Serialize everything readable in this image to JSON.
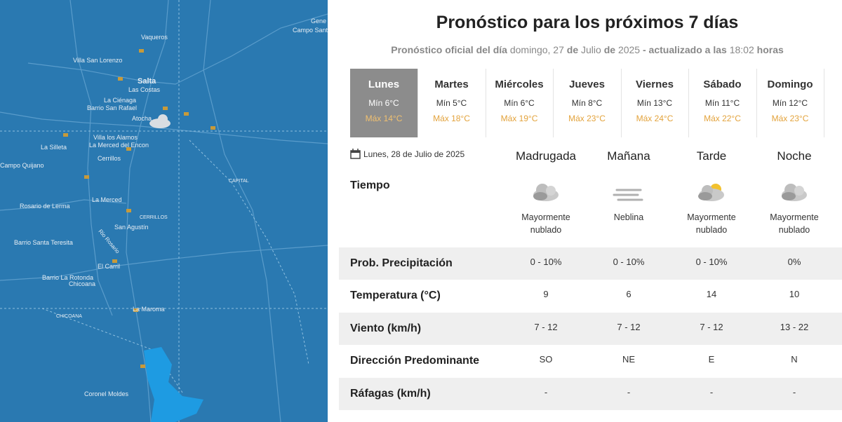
{
  "map": {
    "labels": [
      "Gene",
      "Campo Santo",
      "Vaqueros",
      "Villa San Lorenzo",
      "Salta",
      "Las Costas",
      "La Ciénaga",
      "Barrio San Rafael",
      "Atocha",
      "Villa los Alamos",
      "La Merced del Encon",
      "La Silleta",
      "Cerrillos",
      "Campo Quijano",
      "CAPITAL",
      "Rosario de Lerma",
      "La Merced",
      "CERRILLOS",
      "San Agustín",
      "Barrio Santa Teresita",
      "Rio Rosario",
      "El Carril",
      "Barrio La Rotonda",
      "Chicoana",
      "CHICOANA",
      "La Maroma",
      "Coronel Moldes"
    ]
  },
  "forecast": {
    "title": "Pronóstico para los próximos 7 días",
    "subtitle": [
      "Pronóstico oficial del día",
      "domingo, 27",
      "de",
      "Julio",
      "de",
      "2025",
      "- actualizado a las",
      "18:02",
      "horas"
    ],
    "days": [
      {
        "name": "Lunes",
        "min": "Mín 6°C",
        "max": "Máx 14°C"
      },
      {
        "name": "Martes",
        "min": "Mín 5°C",
        "max": "Máx 18°C"
      },
      {
        "name": "Miércoles",
        "min": "Mín 6°C",
        "max": "Máx 19°C"
      },
      {
        "name": "Jueves",
        "min": "Mín 8°C",
        "max": "Máx 23°C"
      },
      {
        "name": "Viernes",
        "min": "Mín 13°C",
        "max": "Máx 24°C"
      },
      {
        "name": "Sábado",
        "min": "Mín 11°C",
        "max": "Máx 22°C"
      },
      {
        "name": "Domingo",
        "min": "Mín 12°C",
        "max": "Máx 23°C"
      }
    ],
    "date": "Lunes, 28 de Julio de 2025",
    "periods": [
      "Madrugada",
      "Mañana",
      "Tarde",
      "Noche"
    ],
    "weather_label": "Tiempo",
    "weather": [
      "Mayormente nublado",
      "Neblina",
      "Mayormente nublado",
      "Mayormente nublado"
    ],
    "rows": [
      {
        "label": "Prob. Precipitación",
        "values": [
          "0 - 10%",
          "0 - 10%",
          "0 - 10%",
          "0%"
        ]
      },
      {
        "label": "Temperatura (°C)",
        "values": [
          "9",
          "6",
          "14",
          "10"
        ]
      },
      {
        "label": "Viento (km/h)",
        "values": [
          "7 - 12",
          "7 - 12",
          "7 - 12",
          "13 - 22"
        ]
      },
      {
        "label": "Dirección Predominante",
        "values": [
          "SO",
          "NE",
          "E",
          "N"
        ]
      },
      {
        "label": "Ráfagas (km/h)",
        "values": [
          "-",
          "-",
          "-",
          "-"
        ]
      }
    ]
  }
}
